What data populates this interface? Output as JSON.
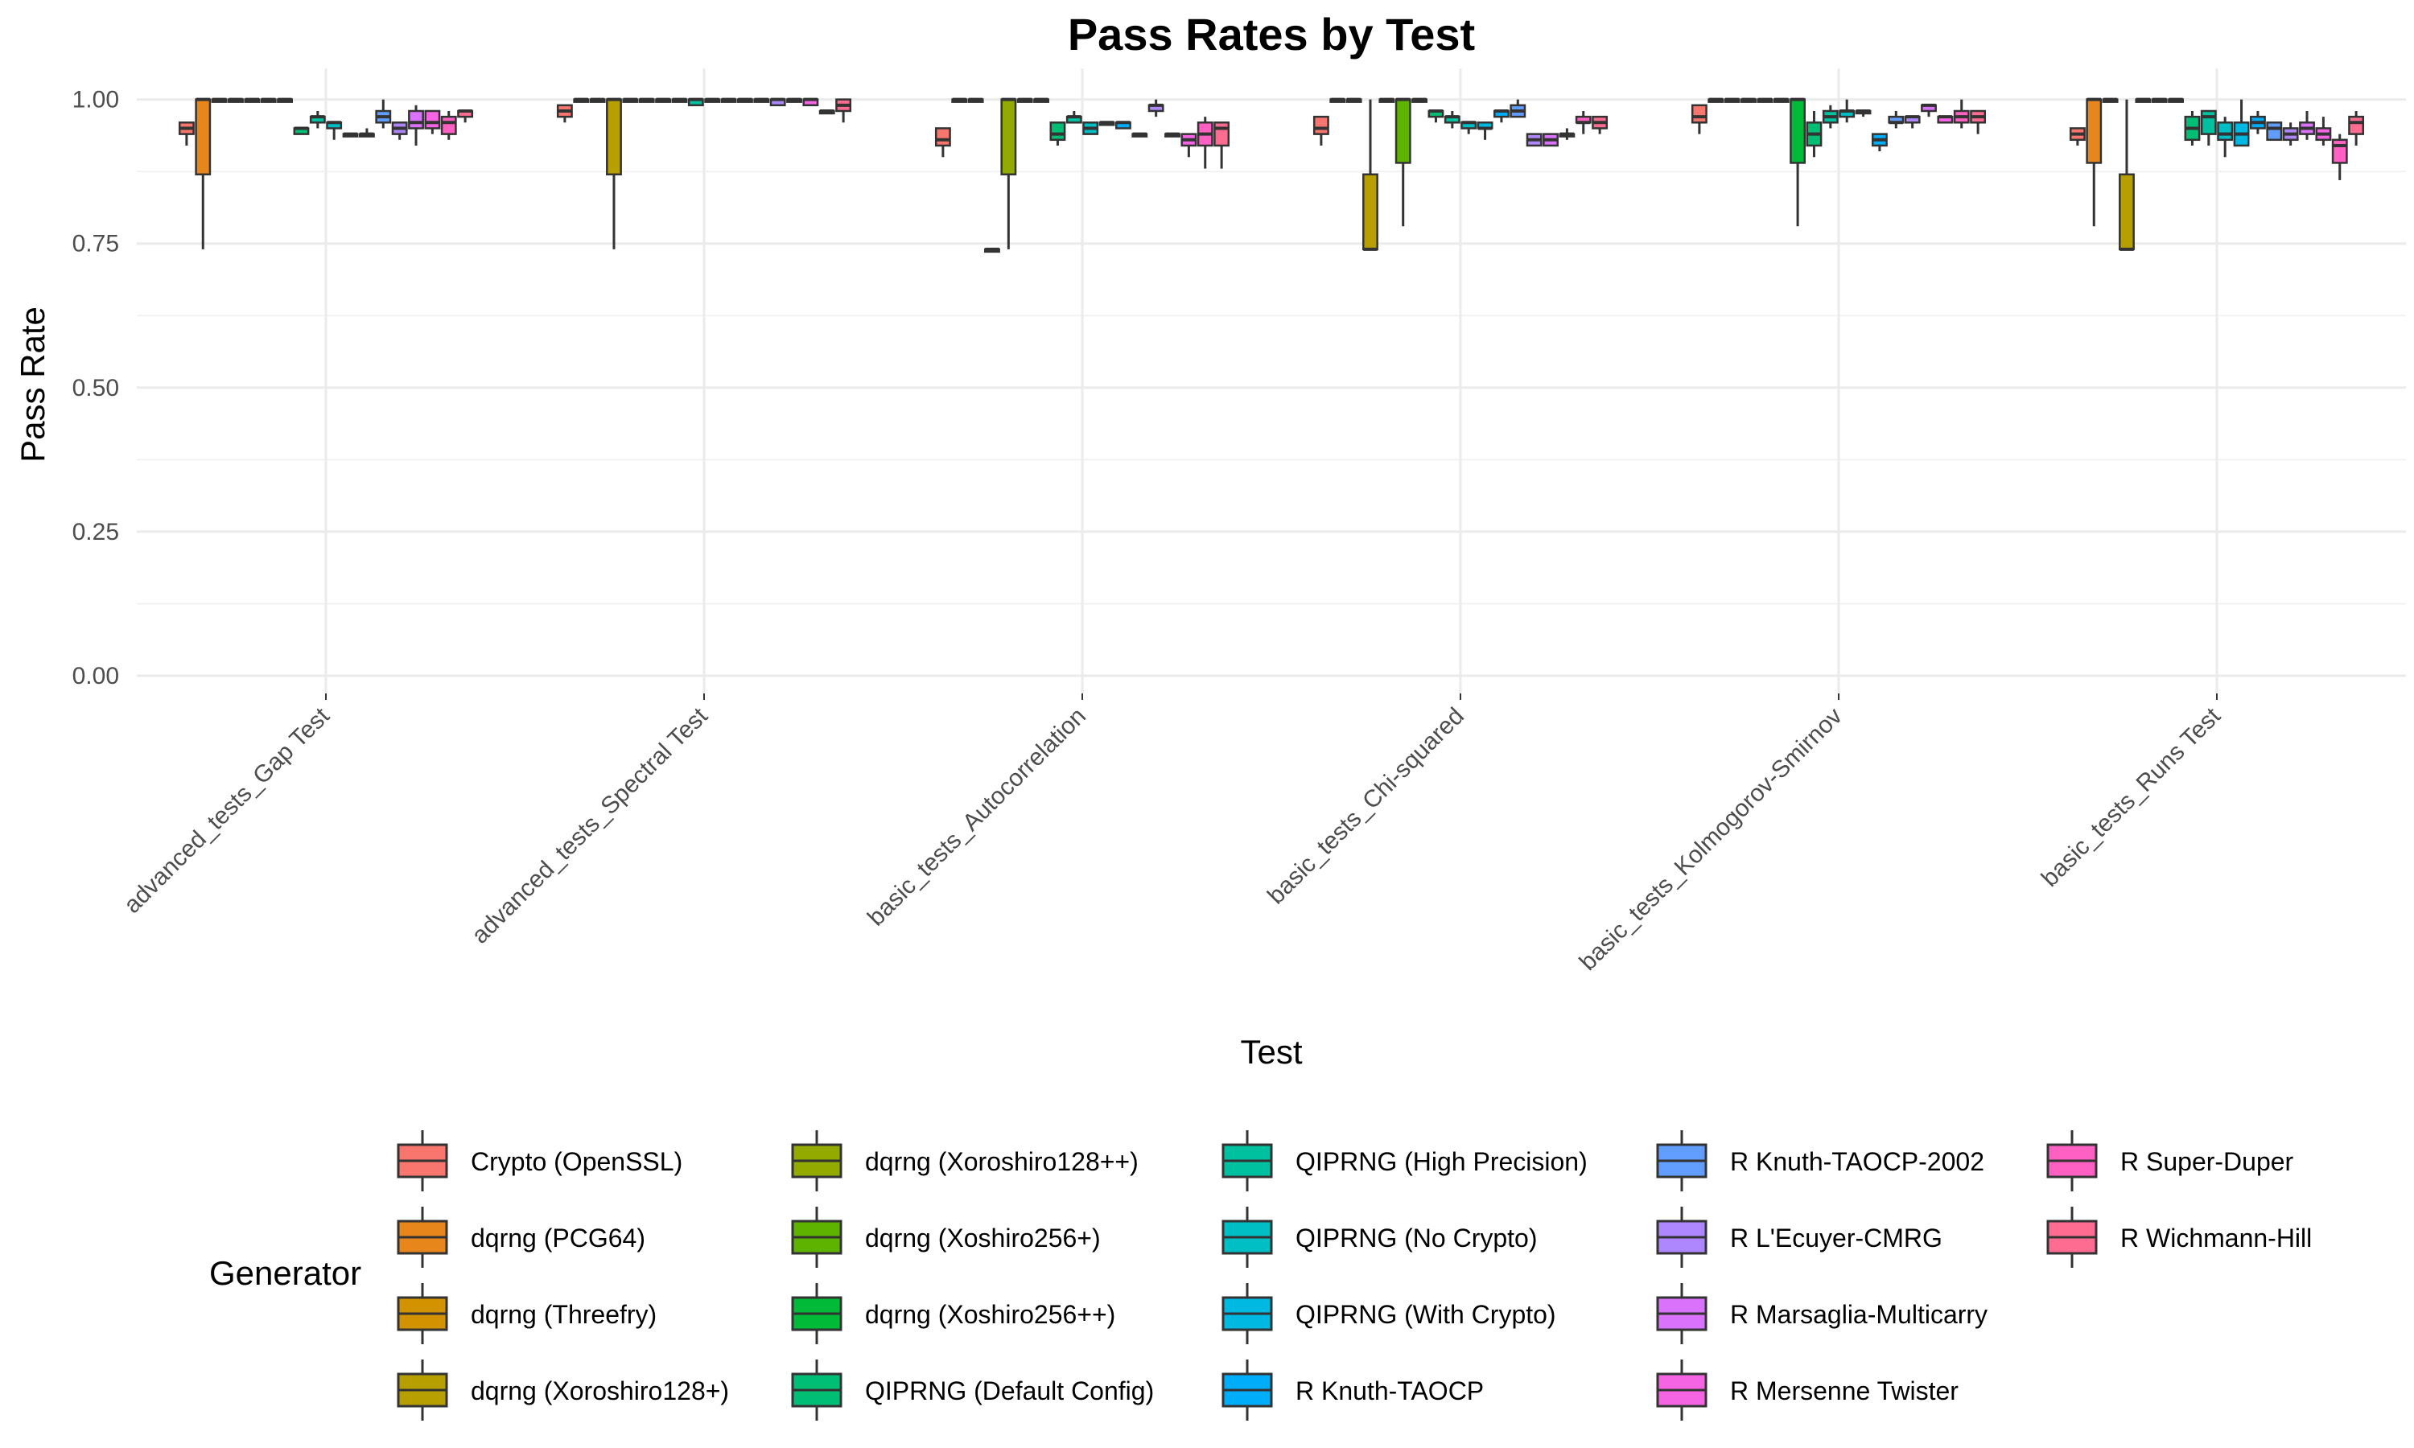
{
  "chart_data": {
    "type": "boxplot",
    "title": "Pass Rates by Test",
    "xlabel": "Test",
    "ylabel": "Pass Rate",
    "ylim": [
      0,
      1.04
    ],
    "yticks": [
      "0.00",
      "0.25",
      "0.50",
      "0.75",
      "1.00"
    ],
    "yticks_values": [
      0,
      0.25,
      0.5,
      0.75,
      1.0
    ],
    "grid": true,
    "legend_title": "Generator",
    "legend_position": "bottom",
    "categories": [
      "advanced_tests_Gap Test",
      "advanced_tests_Spectral Test",
      "basic_tests_Autocorrelation",
      "basic_tests_Chi-squared",
      "basic_tests_Kolmogorov-Smirnov",
      "basic_tests_Runs Test"
    ],
    "series": [
      {
        "name": "Crypto (OpenSSL)",
        "color": "#F8766D",
        "boxes": [
          [
            0.92,
            0.94,
            0.95,
            0.96,
            0.96
          ],
          [
            0.96,
            0.97,
            0.98,
            0.99,
            0.99
          ],
          [
            0.9,
            0.92,
            0.93,
            0.95,
            0.95
          ],
          [
            0.92,
            0.94,
            0.95,
            0.97,
            0.97
          ],
          [
            0.94,
            0.96,
            0.97,
            0.99,
            0.99
          ],
          [
            0.92,
            0.93,
            0.94,
            0.95,
            0.95
          ]
        ]
      },
      {
        "name": "dqrng (PCG64)",
        "color": "#E7861B",
        "boxes": [
          [
            0.74,
            0.87,
            1.0,
            1.0,
            1.0
          ],
          [
            1.0,
            1.0,
            1.0,
            1.0,
            1.0
          ],
          [
            1.0,
            1.0,
            1.0,
            1.0,
            1.0
          ],
          [
            1.0,
            1.0,
            1.0,
            1.0,
            1.0
          ],
          [
            1.0,
            1.0,
            1.0,
            1.0,
            1.0
          ],
          [
            0.78,
            0.89,
            1.0,
            1.0,
            1.0
          ]
        ]
      },
      {
        "name": "dqrng (Threefry)",
        "color": "#D39200",
        "boxes": [
          [
            1.0,
            1.0,
            1.0,
            1.0,
            1.0
          ],
          [
            1.0,
            1.0,
            1.0,
            1.0,
            1.0
          ],
          [
            1.0,
            1.0,
            1.0,
            1.0,
            1.0
          ],
          [
            1.0,
            1.0,
            1.0,
            1.0,
            1.0
          ],
          [
            1.0,
            1.0,
            1.0,
            1.0,
            1.0
          ],
          [
            1.0,
            1.0,
            1.0,
            1.0,
            1.0
          ]
        ]
      },
      {
        "name": "dqrng (Xoroshiro128+)",
        "color": "#B79F00",
        "boxes": [
          [
            1.0,
            1.0,
            1.0,
            1.0,
            1.0
          ],
          [
            0.74,
            0.87,
            1.0,
            1.0,
            1.0
          ],
          [
            0.74,
            0.74,
            0.74,
            0.74,
            0.74
          ],
          [
            0.74,
            0.74,
            0.74,
            0.87,
            1.0
          ],
          [
            1.0,
            1.0,
            1.0,
            1.0,
            1.0
          ],
          [
            0.74,
            0.74,
            0.74,
            0.87,
            1.0
          ]
        ]
      },
      {
        "name": "dqrng (Xoroshiro128++)",
        "color": "#93AA00",
        "boxes": [
          [
            1.0,
            1.0,
            1.0,
            1.0,
            1.0
          ],
          [
            1.0,
            1.0,
            1.0,
            1.0,
            1.0
          ],
          [
            0.74,
            0.87,
            1.0,
            1.0,
            1.0
          ],
          [
            1.0,
            1.0,
            1.0,
            1.0,
            1.0
          ],
          [
            1.0,
            1.0,
            1.0,
            1.0,
            1.0
          ],
          [
            1.0,
            1.0,
            1.0,
            1.0,
            1.0
          ]
        ]
      },
      {
        "name": "dqrng (Xoshiro256+)",
        "color": "#5EB300",
        "boxes": [
          [
            1.0,
            1.0,
            1.0,
            1.0,
            1.0
          ],
          [
            1.0,
            1.0,
            1.0,
            1.0,
            1.0
          ],
          [
            1.0,
            1.0,
            1.0,
            1.0,
            1.0
          ],
          [
            0.78,
            0.89,
            1.0,
            1.0,
            1.0
          ],
          [
            1.0,
            1.0,
            1.0,
            1.0,
            1.0
          ],
          [
            1.0,
            1.0,
            1.0,
            1.0,
            1.0
          ]
        ]
      },
      {
        "name": "dqrng (Xoshiro256++)",
        "color": "#00BA38",
        "boxes": [
          [
            1.0,
            1.0,
            1.0,
            1.0,
            1.0
          ],
          [
            1.0,
            1.0,
            1.0,
            1.0,
            1.0
          ],
          [
            1.0,
            1.0,
            1.0,
            1.0,
            1.0
          ],
          [
            1.0,
            1.0,
            1.0,
            1.0,
            1.0
          ],
          [
            0.78,
            0.89,
            1.0,
            1.0,
            1.0
          ],
          [
            1.0,
            1.0,
            1.0,
            1.0,
            1.0
          ]
        ]
      },
      {
        "name": "QIPRNG (Default Config)",
        "color": "#00BF74",
        "boxes": [
          [
            0.94,
            0.94,
            0.95,
            0.95,
            0.95
          ],
          [
            1.0,
            1.0,
            1.0,
            1.0,
            1.0
          ],
          [
            0.92,
            0.93,
            0.94,
            0.96,
            0.96
          ],
          [
            0.96,
            0.97,
            0.98,
            0.98,
            0.98
          ],
          [
            0.9,
            0.92,
            0.94,
            0.96,
            0.98
          ],
          [
            0.92,
            0.93,
            0.95,
            0.97,
            0.98
          ]
        ]
      },
      {
        "name": "QIPRNG (High Precision)",
        "color": "#00C19F",
        "boxes": [
          [
            0.95,
            0.96,
            0.97,
            0.97,
            0.98
          ],
          [
            0.99,
            0.99,
            1.0,
            1.0,
            1.0
          ],
          [
            0.96,
            0.96,
            0.97,
            0.97,
            0.98
          ],
          [
            0.95,
            0.96,
            0.97,
            0.97,
            0.98
          ],
          [
            0.95,
            0.96,
            0.97,
            0.98,
            0.99
          ],
          [
            0.92,
            0.94,
            0.97,
            0.98,
            0.98
          ]
        ]
      },
      {
        "name": "QIPRNG (No Crypto)",
        "color": "#00BFC4",
        "boxes": [
          [
            0.93,
            0.95,
            0.96,
            0.96,
            0.96
          ],
          [
            1.0,
            1.0,
            1.0,
            1.0,
            1.0
          ],
          [
            0.94,
            0.94,
            0.95,
            0.96,
            0.96
          ],
          [
            0.94,
            0.95,
            0.96,
            0.96,
            0.96
          ],
          [
            0.96,
            0.97,
            0.98,
            0.98,
            1.0
          ],
          [
            0.9,
            0.93,
            0.94,
            0.96,
            0.97
          ]
        ]
      },
      {
        "name": "QIPRNG (With Crypto)",
        "color": "#00B9E3",
        "boxes": [
          [
            0.94,
            0.94,
            0.94,
            0.94,
            0.94
          ],
          [
            1.0,
            1.0,
            1.0,
            1.0,
            1.0
          ],
          [
            0.96,
            0.96,
            0.96,
            0.96,
            0.96
          ],
          [
            0.93,
            0.95,
            0.95,
            0.96,
            0.96
          ],
          [
            0.97,
            0.98,
            0.98,
            0.98,
            0.98
          ],
          [
            0.92,
            0.92,
            0.94,
            0.96,
            1.0
          ]
        ]
      },
      {
        "name": "R Knuth-TAOCP",
        "color": "#00ADFA",
        "boxes": [
          [
            0.94,
            0.94,
            0.94,
            0.94,
            0.95
          ],
          [
            1.0,
            1.0,
            1.0,
            1.0,
            1.0
          ],
          [
            0.95,
            0.95,
            0.96,
            0.96,
            0.96
          ],
          [
            0.96,
            0.97,
            0.98,
            0.98,
            0.98
          ],
          [
            0.91,
            0.92,
            0.93,
            0.94,
            0.94
          ],
          [
            0.94,
            0.95,
            0.96,
            0.97,
            0.98
          ]
        ]
      },
      {
        "name": "R Knuth-TAOCP-2002",
        "color": "#619CFF",
        "boxes": [
          [
            0.95,
            0.96,
            0.97,
            0.98,
            1.0
          ],
          [
            1.0,
            1.0,
            1.0,
            1.0,
            1.0
          ],
          [
            0.94,
            0.94,
            0.94,
            0.94,
            0.94
          ],
          [
            0.97,
            0.97,
            0.98,
            0.99,
            1.0
          ],
          [
            0.95,
            0.96,
            0.96,
            0.97,
            0.98
          ],
          [
            0.93,
            0.93,
            0.95,
            0.96,
            0.96
          ]
        ]
      },
      {
        "name": "R L'Ecuyer-CMRG",
        "color": "#AE87FF",
        "boxes": [
          [
            0.93,
            0.94,
            0.95,
            0.96,
            0.96
          ],
          [
            0.99,
            0.99,
            1.0,
            1.0,
            1.0
          ],
          [
            0.97,
            0.98,
            0.99,
            0.99,
            1.0
          ],
          [
            0.92,
            0.92,
            0.93,
            0.94,
            0.94
          ],
          [
            0.95,
            0.96,
            0.97,
            0.97,
            0.97
          ],
          [
            0.92,
            0.93,
            0.94,
            0.95,
            0.96
          ]
        ]
      },
      {
        "name": "R Marsaglia-Multicarry",
        "color": "#DB72FB",
        "boxes": [
          [
            0.92,
            0.95,
            0.96,
            0.98,
            0.99
          ],
          [
            1.0,
            1.0,
            1.0,
            1.0,
            1.0
          ],
          [
            0.94,
            0.94,
            0.94,
            0.94,
            0.94
          ],
          [
            0.92,
            0.92,
            0.93,
            0.94,
            0.94
          ],
          [
            0.97,
            0.98,
            0.99,
            0.99,
            0.99
          ],
          [
            0.93,
            0.94,
            0.95,
            0.96,
            0.98
          ]
        ]
      },
      {
        "name": "R Mersenne Twister",
        "color": "#F564E3",
        "boxes": [
          [
            0.94,
            0.95,
            0.96,
            0.98,
            0.98
          ],
          [
            0.99,
            0.99,
            1.0,
            1.0,
            1.0
          ],
          [
            0.9,
            0.92,
            0.93,
            0.94,
            0.94
          ],
          [
            0.93,
            0.94,
            0.94,
            0.94,
            0.95
          ],
          [
            0.96,
            0.96,
            0.97,
            0.97,
            0.97
          ],
          [
            0.92,
            0.93,
            0.94,
            0.95,
            0.97
          ]
        ]
      },
      {
        "name": "R Super-Duper",
        "color": "#FF61C3",
        "boxes": [
          [
            0.93,
            0.94,
            0.96,
            0.97,
            0.98
          ],
          [
            0.98,
            0.98,
            0.98,
            0.98,
            0.98
          ],
          [
            0.88,
            0.92,
            0.94,
            0.96,
            0.97
          ],
          [
            0.94,
            0.96,
            0.96,
            0.97,
            0.98
          ],
          [
            0.95,
            0.96,
            0.97,
            0.98,
            1.0
          ],
          [
            0.86,
            0.89,
            0.92,
            0.93,
            0.94
          ]
        ]
      },
      {
        "name": "R Wichmann-Hill",
        "color": "#FF6C91",
        "boxes": [
          [
            0.96,
            0.97,
            0.98,
            0.98,
            0.98
          ],
          [
            0.96,
            0.98,
            0.99,
            1.0,
            1.0
          ],
          [
            0.88,
            0.92,
            0.95,
            0.96,
            0.96
          ],
          [
            0.94,
            0.95,
            0.96,
            0.97,
            0.97
          ],
          [
            0.94,
            0.96,
            0.97,
            0.98,
            0.98
          ],
          [
            0.92,
            0.94,
            0.96,
            0.97,
            0.98
          ]
        ]
      }
    ]
  }
}
